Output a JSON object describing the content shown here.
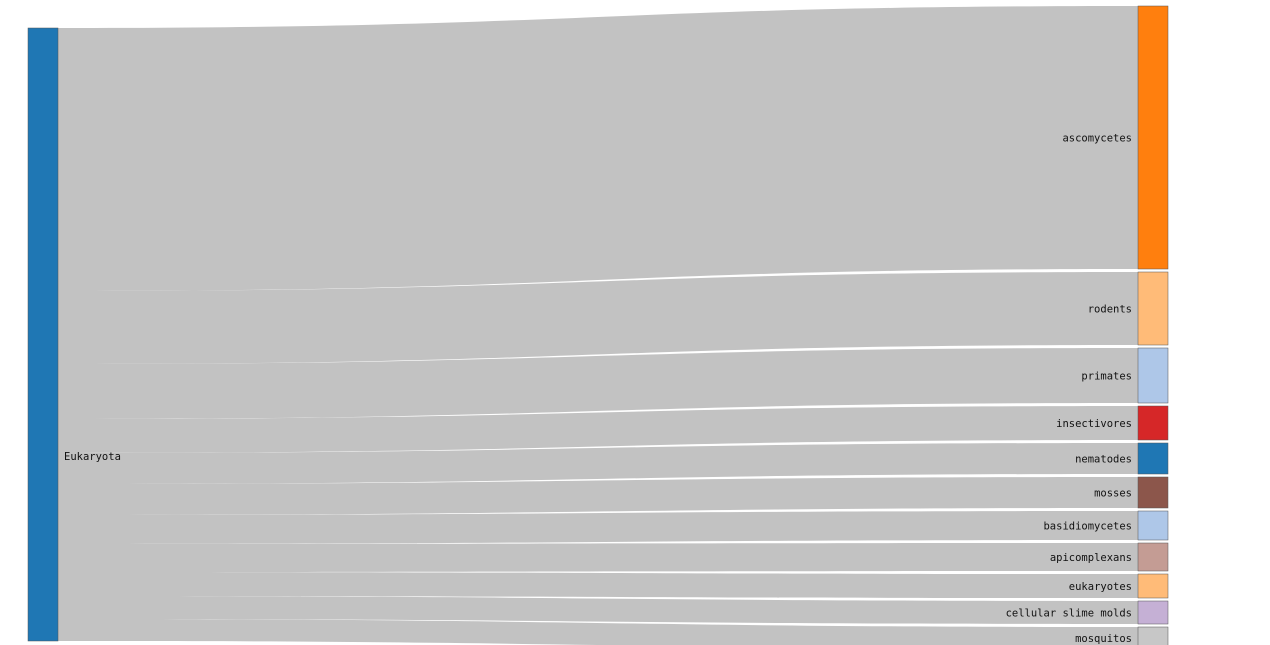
{
  "chart_data": {
    "type": "sankey",
    "title": "",
    "source": {
      "name": "Eukaryota",
      "color": "#1f77b4"
    },
    "targets": [
      {
        "name": "ascomycetes",
        "value": 263,
        "color": "#ff7f0e"
      },
      {
        "name": "rodents",
        "value": 73,
        "color": "#ffbb78"
      },
      {
        "name": "primates",
        "value": 55,
        "color": "#aec7e8"
      },
      {
        "name": "insectivores",
        "value": 34,
        "color": "#d62728"
      },
      {
        "name": "nematodes",
        "value": 31,
        "color": "#1f77b4"
      },
      {
        "name": "mosses",
        "value": 31,
        "color": "#8c564b"
      },
      {
        "name": "basidiomycetes",
        "value": 29,
        "color": "#aec7e8"
      },
      {
        "name": "apicomplexans",
        "value": 28,
        "color": "#c49c94"
      },
      {
        "name": "eukaryotes",
        "value": 24,
        "color": "#ffbb78"
      },
      {
        "name": "cellular slime molds",
        "value": 23,
        "color": "#c5b0d5"
      },
      {
        "name": "mosquitos",
        "value": 22,
        "color": "#c7c7c7"
      }
    ],
    "link_color": "#c2c2c2"
  }
}
